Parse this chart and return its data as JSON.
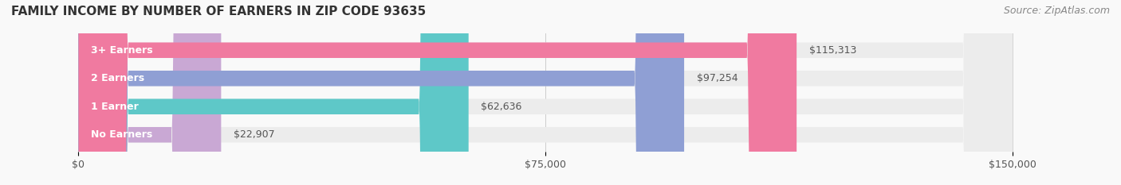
{
  "title": "FAMILY INCOME BY NUMBER OF EARNERS IN ZIP CODE 93635",
  "source": "Source: ZipAtlas.com",
  "categories": [
    "No Earners",
    "1 Earner",
    "2 Earners",
    "3+ Earners"
  ],
  "values": [
    22907,
    62636,
    97254,
    115313
  ],
  "bar_colors": [
    "#c9a8d4",
    "#5ec8c8",
    "#8f9fd4",
    "#f07aa0"
  ],
  "bar_bg_color": "#ececec",
  "value_labels": [
    "$22,907",
    "$62,636",
    "$97,254",
    "$115,313"
  ],
  "x_ticks": [
    0,
    75000,
    150000
  ],
  "x_tick_labels": [
    "$0",
    "$75,000",
    "$150,000"
  ],
  "xlim": [
    0,
    150000
  ],
  "title_fontsize": 11,
  "source_fontsize": 9,
  "label_fontsize": 9,
  "tick_fontsize": 9,
  "background_color": "#f9f9f9"
}
